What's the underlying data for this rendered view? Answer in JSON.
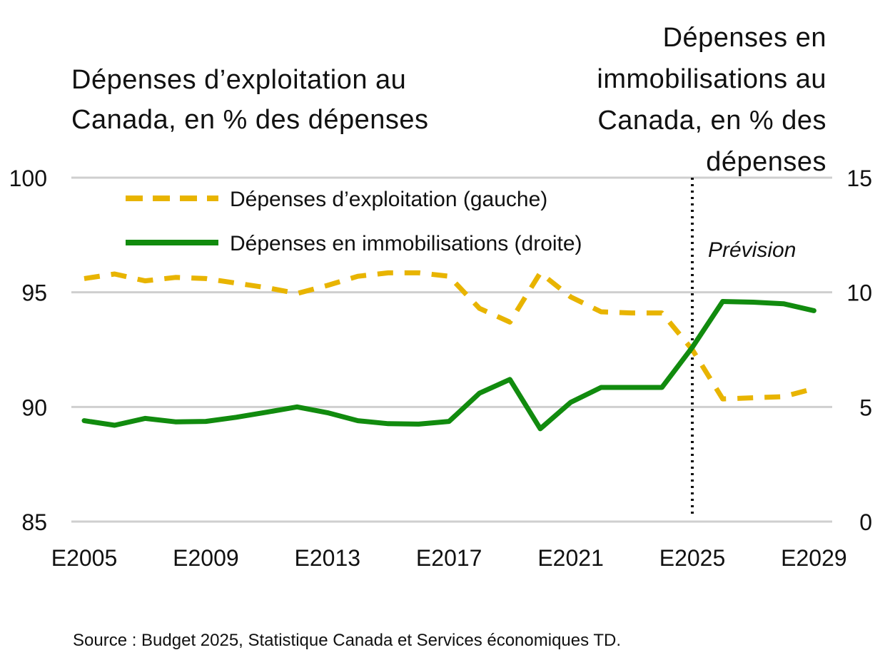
{
  "chart_data": {
    "type": "line",
    "y_left_label": "Dépenses d’exploitation au Canada, en % des dépenses",
    "y_right_label": "Dépenses en immobilisations au Canada, en % des dépenses",
    "x_tick_labels": [
      "E2005",
      "E2009",
      "E2013",
      "E2017",
      "E2021",
      "E2025",
      "E2029"
    ],
    "x": [
      "E2005",
      "E2006",
      "E2007",
      "E2008",
      "E2009",
      "E2010",
      "E2011",
      "E2012",
      "E2013",
      "E2014",
      "E2015",
      "E2016",
      "E2017",
      "E2018",
      "E2019",
      "E2020",
      "E2021",
      "E2022",
      "E2023",
      "E2024",
      "E2025",
      "E2026",
      "E2027",
      "E2028",
      "E2029"
    ],
    "y_left_ticks": [
      "100",
      "95",
      "90",
      "85"
    ],
    "y_right_ticks": [
      "15",
      "10",
      "5",
      "0"
    ],
    "ylim_left": [
      85,
      100
    ],
    "ylim_right": [
      0,
      15
    ],
    "grid": true,
    "legend_position": "top-left",
    "series": [
      {
        "name": "Dépenses d’exploitation (gauche)",
        "axis": "left",
        "style": "dashed",
        "color": "#e8b400",
        "values": [
          95.6,
          95.8,
          95.5,
          95.65,
          95.6,
          95.4,
          95.2,
          94.95,
          95.3,
          95.7,
          95.85,
          95.85,
          95.7,
          94.3,
          93.7,
          95.85,
          94.8,
          94.15,
          94.1,
          94.1,
          92.5,
          90.35,
          90.4,
          90.45,
          90.8
        ]
      },
      {
        "name": "Dépenses en immobilisations (droite)",
        "axis": "right",
        "style": "solid",
        "color": "#118b0e",
        "values": [
          4.4,
          4.2,
          4.5,
          4.35,
          4.37,
          4.55,
          4.77,
          5.0,
          4.75,
          4.4,
          4.27,
          4.25,
          4.37,
          5.6,
          6.2,
          4.05,
          5.2,
          5.85,
          5.85,
          5.85,
          7.6,
          9.6,
          9.57,
          9.5,
          9.2
        ]
      }
    ],
    "forecast_start": "E2025",
    "annotations": [
      "Prévision"
    ]
  },
  "source": "Source : Budget 2025, Statistique Canada et Services économiques TD."
}
